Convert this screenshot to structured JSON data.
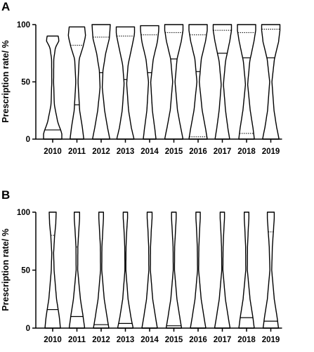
{
  "chart_data": [
    {
      "type": "violin",
      "panel": "A",
      "ylabel": "Prescription rate/ %",
      "ylim": [
        0,
        100
      ],
      "yticks": [
        0,
        50,
        100
      ],
      "categories": [
        "2010",
        "2011",
        "2012",
        "2013",
        "2014",
        "2015",
        "2016",
        "2017",
        "2018",
        "2019"
      ],
      "max": [
        90,
        98,
        100,
        98,
        99,
        100,
        100,
        100,
        100,
        100
      ],
      "median": [
        8,
        30,
        58,
        52,
        58,
        70,
        59,
        75,
        71,
        71
      ],
      "q1": [
        null,
        null,
        null,
        null,
        null,
        null,
        2,
        null,
        5,
        null
      ],
      "q3": [
        null,
        82,
        89,
        90,
        91,
        93,
        91,
        95,
        93,
        96
      ],
      "width_profiles": [
        [
          [
            0,
            1.0
          ],
          [
            5,
            1.0
          ],
          [
            15,
            0.55
          ],
          [
            30,
            0.18
          ],
          [
            50,
            0.1
          ],
          [
            70,
            0.12
          ],
          [
            80,
            0.3
          ],
          [
            86,
            0.7
          ],
          [
            90,
            0.6
          ]
        ],
        [
          [
            0,
            0.75
          ],
          [
            10,
            0.6
          ],
          [
            25,
            0.3
          ],
          [
            50,
            0.12
          ],
          [
            70,
            0.25
          ],
          [
            80,
            0.65
          ],
          [
            90,
            0.95
          ],
          [
            98,
            0.85
          ]
        ],
        [
          [
            0,
            0.95
          ],
          [
            10,
            0.7
          ],
          [
            25,
            0.38
          ],
          [
            45,
            0.12
          ],
          [
            60,
            0.2
          ],
          [
            75,
            0.5
          ],
          [
            88,
            0.9
          ],
          [
            100,
            1.0
          ]
        ],
        [
          [
            0,
            0.95
          ],
          [
            10,
            0.65
          ],
          [
            25,
            0.35
          ],
          [
            48,
            0.14
          ],
          [
            65,
            0.3
          ],
          [
            80,
            0.7
          ],
          [
            92,
            1.0
          ],
          [
            98,
            1.0
          ]
        ],
        [
          [
            0,
            0.7
          ],
          [
            10,
            0.55
          ],
          [
            25,
            0.3
          ],
          [
            50,
            0.12
          ],
          [
            70,
            0.4
          ],
          [
            85,
            0.85
          ],
          [
            95,
            1.0
          ],
          [
            99,
            1.0
          ]
        ],
        [
          [
            0,
            1.0
          ],
          [
            10,
            0.75
          ],
          [
            25,
            0.4
          ],
          [
            50,
            0.13
          ],
          [
            70,
            0.35
          ],
          [
            85,
            0.8
          ],
          [
            95,
            1.0
          ],
          [
            100,
            1.0
          ]
        ],
        [
          [
            0,
            1.0
          ],
          [
            10,
            0.8
          ],
          [
            25,
            0.45
          ],
          [
            50,
            0.13
          ],
          [
            70,
            0.35
          ],
          [
            85,
            0.8
          ],
          [
            95,
            1.0
          ],
          [
            100,
            1.0
          ]
        ],
        [
          [
            0,
            0.8
          ],
          [
            10,
            0.6
          ],
          [
            25,
            0.35
          ],
          [
            48,
            0.12
          ],
          [
            68,
            0.35
          ],
          [
            85,
            0.8
          ],
          [
            95,
            1.0
          ],
          [
            100,
            1.0
          ]
        ],
        [
          [
            0,
            0.85
          ],
          [
            10,
            0.7
          ],
          [
            25,
            0.4
          ],
          [
            48,
            0.12
          ],
          [
            68,
            0.35
          ],
          [
            85,
            0.8
          ],
          [
            95,
            1.0
          ],
          [
            100,
            1.0
          ]
        ],
        [
          [
            0,
            0.9
          ],
          [
            10,
            0.65
          ],
          [
            25,
            0.35
          ],
          [
            50,
            0.12
          ],
          [
            70,
            0.4
          ],
          [
            85,
            0.85
          ],
          [
            95,
            1.0
          ],
          [
            100,
            1.0
          ]
        ]
      ]
    },
    {
      "type": "violin",
      "panel": "B",
      "ylabel": "Prescription rate/ %",
      "ylim": [
        0,
        100
      ],
      "yticks": [
        0,
        50,
        100
      ],
      "categories": [
        "2010",
        "2011",
        "2012",
        "2013",
        "2014",
        "2015",
        "2016",
        "2017",
        "2018",
        "2019"
      ],
      "max": [
        100,
        100,
        100,
        100,
        100,
        100,
        100,
        100,
        100,
        100
      ],
      "median": [
        16,
        10,
        3,
        4,
        0,
        2,
        0,
        0,
        9,
        6
      ],
      "q1": [
        null,
        null,
        null,
        null,
        null,
        null,
        null,
        null,
        null,
        null
      ],
      "q3": [
        80,
        70,
        null,
        null,
        null,
        null,
        null,
        null,
        null,
        83
      ],
      "width_profiles": [
        [
          [
            0,
            1.0
          ],
          [
            10,
            0.85
          ],
          [
            25,
            0.5
          ],
          [
            50,
            0.18
          ],
          [
            65,
            0.12
          ],
          [
            80,
            0.25
          ],
          [
            90,
            0.4
          ],
          [
            100,
            0.45
          ]
        ],
        [
          [
            0,
            1.0
          ],
          [
            10,
            0.8
          ],
          [
            25,
            0.45
          ],
          [
            50,
            0.1
          ],
          [
            70,
            0.12
          ],
          [
            85,
            0.25
          ],
          [
            95,
            0.35
          ],
          [
            100,
            0.35
          ]
        ],
        [
          [
            0,
            1.0
          ],
          [
            10,
            0.75
          ],
          [
            25,
            0.4
          ],
          [
            50,
            0.08
          ],
          [
            70,
            0.1
          ],
          [
            85,
            0.22
          ],
          [
            95,
            0.3
          ],
          [
            100,
            0.3
          ]
        ],
        [
          [
            0,
            1.0
          ],
          [
            10,
            0.7
          ],
          [
            25,
            0.35
          ],
          [
            50,
            0.06
          ],
          [
            70,
            0.08
          ],
          [
            85,
            0.18
          ],
          [
            95,
            0.28
          ],
          [
            100,
            0.28
          ]
        ],
        [
          [
            0,
            1.0
          ],
          [
            10,
            0.75
          ],
          [
            25,
            0.4
          ],
          [
            50,
            0.1
          ],
          [
            70,
            0.12
          ],
          [
            85,
            0.22
          ],
          [
            95,
            0.32
          ],
          [
            100,
            0.32
          ]
        ],
        [
          [
            0,
            1.0
          ],
          [
            10,
            0.75
          ],
          [
            25,
            0.4
          ],
          [
            50,
            0.08
          ],
          [
            70,
            0.1
          ],
          [
            85,
            0.22
          ],
          [
            95,
            0.3
          ],
          [
            100,
            0.3
          ]
        ],
        [
          [
            0,
            1.0
          ],
          [
            10,
            0.75
          ],
          [
            25,
            0.4
          ],
          [
            50,
            0.07
          ],
          [
            70,
            0.1
          ],
          [
            85,
            0.2
          ],
          [
            95,
            0.28
          ],
          [
            100,
            0.28
          ]
        ],
        [
          [
            0,
            1.0
          ],
          [
            10,
            0.75
          ],
          [
            25,
            0.4
          ],
          [
            50,
            0.07
          ],
          [
            70,
            0.1
          ],
          [
            85,
            0.2
          ],
          [
            95,
            0.28
          ],
          [
            100,
            0.28
          ]
        ],
        [
          [
            0,
            1.0
          ],
          [
            10,
            0.8
          ],
          [
            25,
            0.45
          ],
          [
            50,
            0.1
          ],
          [
            70,
            0.12
          ],
          [
            85,
            0.22
          ],
          [
            95,
            0.3
          ],
          [
            100,
            0.3
          ]
        ],
        [
          [
            0,
            1.0
          ],
          [
            10,
            0.8
          ],
          [
            25,
            0.45
          ],
          [
            50,
            0.12
          ],
          [
            70,
            0.2
          ],
          [
            85,
            0.35
          ],
          [
            95,
            0.45
          ],
          [
            100,
            0.45
          ]
        ]
      ]
    }
  ]
}
